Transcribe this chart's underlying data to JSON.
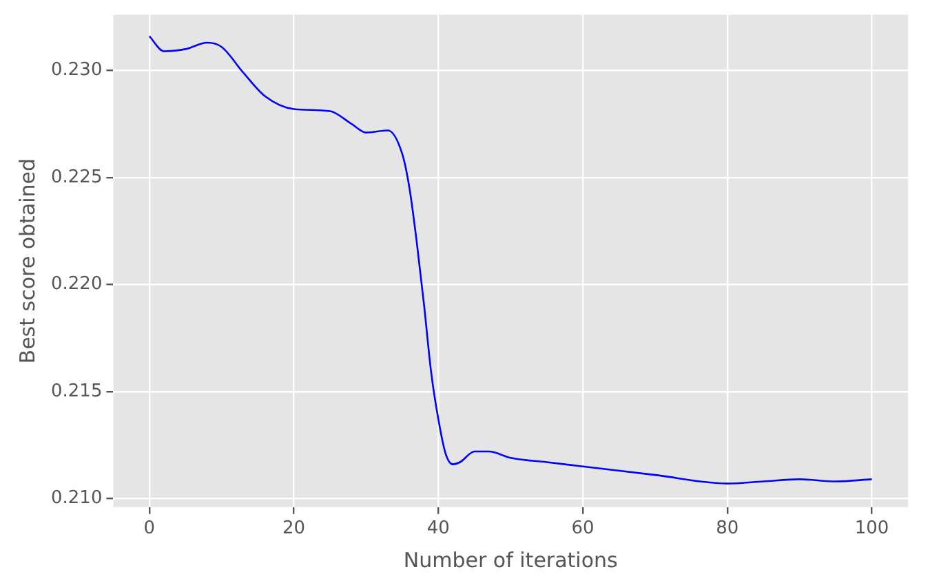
{
  "chart_data": {
    "type": "line",
    "xlabel": "Number of iterations",
    "ylabel": "Best score obtained",
    "x": [
      0,
      2,
      5,
      8,
      10,
      13,
      16,
      20,
      25,
      28,
      30,
      33,
      35,
      36,
      37,
      38,
      39,
      40,
      41,
      42,
      43,
      45,
      47,
      50,
      55,
      60,
      70,
      80,
      85,
      90,
      95,
      100
    ],
    "series": [
      {
        "color": "#0000ff",
        "values": [
          0.2316,
          0.2309,
          0.231,
          0.2313,
          0.2311,
          0.2299,
          0.2288,
          0.2282,
          0.2281,
          0.2275,
          0.2271,
          0.2272,
          0.2261,
          0.2245,
          0.222,
          0.2191,
          0.2159,
          0.2137,
          0.2121,
          0.2116,
          0.2117,
          0.2122,
          0.2122,
          0.2119,
          0.2117,
          0.2115,
          0.2111,
          0.2107,
          0.2108,
          0.2109,
          0.2108,
          0.2109
        ]
      }
    ],
    "xlim": [
      -5,
      105
    ],
    "xticks": [
      0,
      20,
      40,
      60,
      80,
      100
    ],
    "ylim": [
      0.2096,
      0.2326
    ],
    "yticks": [
      {
        "value": 0.21,
        "label": "0.210"
      },
      {
        "value": 0.215,
        "label": "0.215"
      },
      {
        "value": 0.22,
        "label": "0.220"
      },
      {
        "value": 0.225,
        "label": "0.225"
      },
      {
        "value": 0.23,
        "label": "0.230"
      }
    ],
    "grid": true,
    "legend": false,
    "marker": "none",
    "line_style": "solid"
  }
}
